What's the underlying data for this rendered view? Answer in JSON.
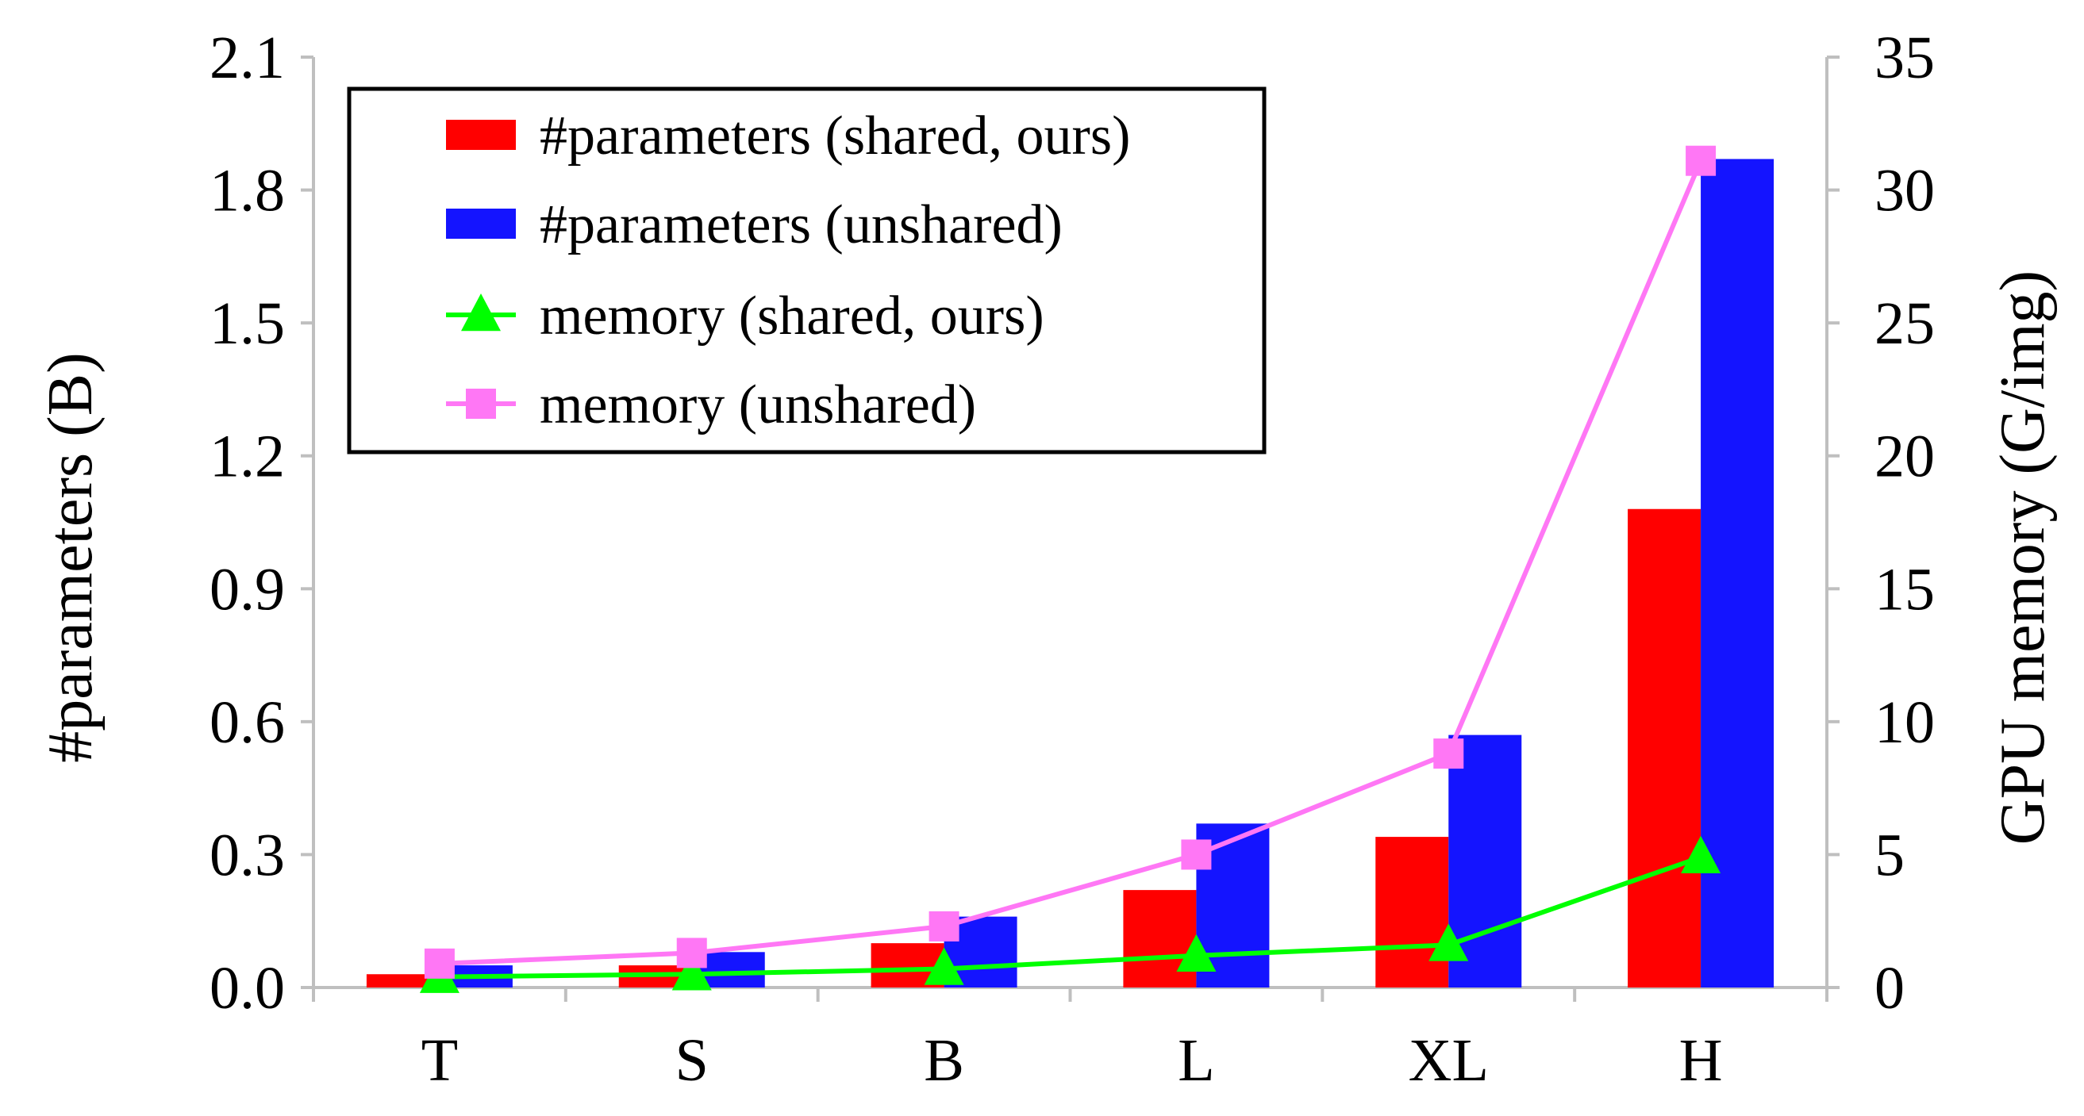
{
  "chart_data": {
    "type": "bar",
    "categories": [
      "T",
      "S",
      "B",
      "L",
      "XL",
      "H"
    ],
    "y_left": {
      "label": "#parameters (B)",
      "ylim": [
        0,
        2.1
      ],
      "ticks": [
        "0.0",
        "0.3",
        "0.6",
        "0.9",
        "1.2",
        "1.5",
        "1.8",
        "2.1"
      ]
    },
    "y_right": {
      "label": "GPU memory (G/img)",
      "ylim": [
        0,
        35
      ],
      "ticks": [
        "0",
        "5",
        "10",
        "15",
        "20",
        "25",
        "30",
        "35"
      ]
    },
    "series": [
      {
        "name": "#parameters (shared, ours)",
        "kind": "bar",
        "axis": "left",
        "color": "#ff0000",
        "values": [
          0.03,
          0.05,
          0.1,
          0.22,
          0.34,
          1.08
        ]
      },
      {
        "name": "#parameters (unshared)",
        "kind": "bar",
        "axis": "left",
        "color": "#1414ff",
        "values": [
          0.05,
          0.08,
          0.16,
          0.37,
          0.57,
          1.87
        ]
      },
      {
        "name": "memory (shared, ours)",
        "kind": "line",
        "marker": "triangle",
        "axis": "right",
        "color": "#00ff00",
        "values": [
          0.4,
          0.5,
          0.7,
          1.2,
          1.6,
          4.9
        ]
      },
      {
        "name": "memory (unshared)",
        "kind": "line",
        "marker": "square",
        "axis": "right",
        "color": "#ff77f5",
        "values": [
          0.9,
          1.3,
          2.3,
          5.0,
          8.8,
          31.1
        ]
      }
    ],
    "legend_position": "top-left",
    "grid": false
  }
}
